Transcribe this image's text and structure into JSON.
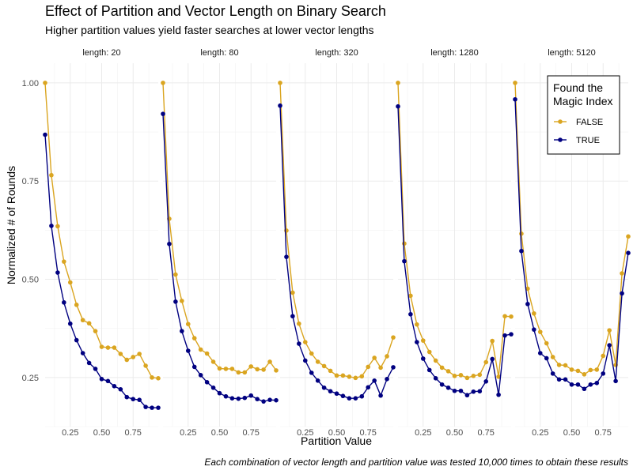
{
  "title": "Effect of Partition and Vector Length on Binary Search",
  "subtitle": "Higher partition values yield faster searches at lower vector lengths",
  "caption": "Each combination of vector length and partition value was tested 10,000 times to obtain these results",
  "chart_data": {
    "type": "line",
    "facet_label_prefix": "length: ",
    "xlabel": "Partition Value",
    "ylabel": "Normalized # of Rounds",
    "xlim": [
      0.05,
      0.95
    ],
    "ylim": [
      0.125,
      1.05
    ],
    "xticks": [
      0.25,
      0.5,
      0.75
    ],
    "xtick_labels": [
      "0.25",
      "0.50",
      "0.75"
    ],
    "yticks": [
      0.25,
      0.5,
      0.75,
      1.0
    ],
    "ytick_labels": [
      "0.25",
      "0.50",
      "0.75",
      "1.00"
    ],
    "legend": {
      "title_lines": [
        "Found the",
        "Magic Index"
      ],
      "position": "top-right"
    },
    "x": [
      0.05,
      0.1,
      0.15,
      0.2,
      0.25,
      0.3,
      0.35,
      0.4,
      0.45,
      0.5,
      0.55,
      0.6,
      0.65,
      0.7,
      0.75,
      0.8,
      0.85,
      0.9,
      0.95
    ],
    "series": [
      {
        "name": "FALSE",
        "color": "#DAA520"
      },
      {
        "name": "TRUE",
        "color": "#000080"
      }
    ],
    "facets": [
      {
        "length": "20",
        "values": {
          "FALSE": [
            1.0,
            0.765,
            0.635,
            0.545,
            0.492,
            0.435,
            0.396,
            0.388,
            0.368,
            0.328,
            0.326,
            0.326,
            0.31,
            0.295,
            0.302,
            0.31,
            0.28,
            0.25,
            0.248
          ],
          "TRUE": [
            0.868,
            0.636,
            0.517,
            0.441,
            0.387,
            0.345,
            0.312,
            0.287,
            0.272,
            0.246,
            0.241,
            0.228,
            0.22,
            0.2,
            0.195,
            0.193,
            0.175,
            0.173,
            0.173
          ]
        }
      },
      {
        "length": "80",
        "values": {
          "FALSE": [
            1.0,
            0.654,
            0.512,
            0.445,
            0.386,
            0.35,
            0.321,
            0.311,
            0.29,
            0.273,
            0.272,
            0.272,
            0.263,
            0.263,
            0.278,
            0.271,
            0.27,
            0.29,
            0.268
          ],
          "TRUE": [
            0.921,
            0.59,
            0.443,
            0.368,
            0.318,
            0.277,
            0.256,
            0.238,
            0.224,
            0.21,
            0.202,
            0.197,
            0.196,
            0.198,
            0.204,
            0.195,
            0.189,
            0.193,
            0.192
          ]
        }
      },
      {
        "length": "320",
        "values": {
          "FALSE": [
            1.0,
            0.624,
            0.466,
            0.387,
            0.34,
            0.311,
            0.29,
            0.279,
            0.267,
            0.255,
            0.255,
            0.252,
            0.249,
            0.253,
            0.277,
            0.3,
            0.275,
            0.304,
            0.352
          ],
          "TRUE": [
            0.942,
            0.557,
            0.406,
            0.336,
            0.293,
            0.262,
            0.242,
            0.224,
            0.215,
            0.209,
            0.203,
            0.197,
            0.197,
            0.202,
            0.225,
            0.242,
            0.204,
            0.246,
            0.276
          ]
        }
      },
      {
        "length": "1280",
        "values": {
          "FALSE": [
            1.0,
            0.591,
            0.458,
            0.385,
            0.344,
            0.315,
            0.293,
            0.275,
            0.266,
            0.254,
            0.256,
            0.249,
            0.254,
            0.257,
            0.289,
            0.343,
            0.252,
            0.406,
            0.405
          ],
          "TRUE": [
            0.94,
            0.546,
            0.411,
            0.34,
            0.298,
            0.269,
            0.248,
            0.232,
            0.224,
            0.216,
            0.216,
            0.205,
            0.214,
            0.215,
            0.24,
            0.297,
            0.206,
            0.357,
            0.36
          ]
        }
      },
      {
        "length": "5120",
        "values": {
          "FALSE": [
            1.0,
            0.616,
            0.476,
            0.413,
            0.366,
            0.337,
            0.302,
            0.282,
            0.281,
            0.27,
            0.267,
            0.258,
            0.269,
            0.27,
            0.305,
            0.37,
            0.282,
            0.515,
            0.609
          ],
          "TRUE": [
            0.958,
            0.572,
            0.437,
            0.372,
            0.312,
            0.299,
            0.26,
            0.245,
            0.245,
            0.232,
            0.232,
            0.221,
            0.232,
            0.236,
            0.26,
            0.332,
            0.241,
            0.464,
            0.567
          ]
        }
      }
    ]
  }
}
